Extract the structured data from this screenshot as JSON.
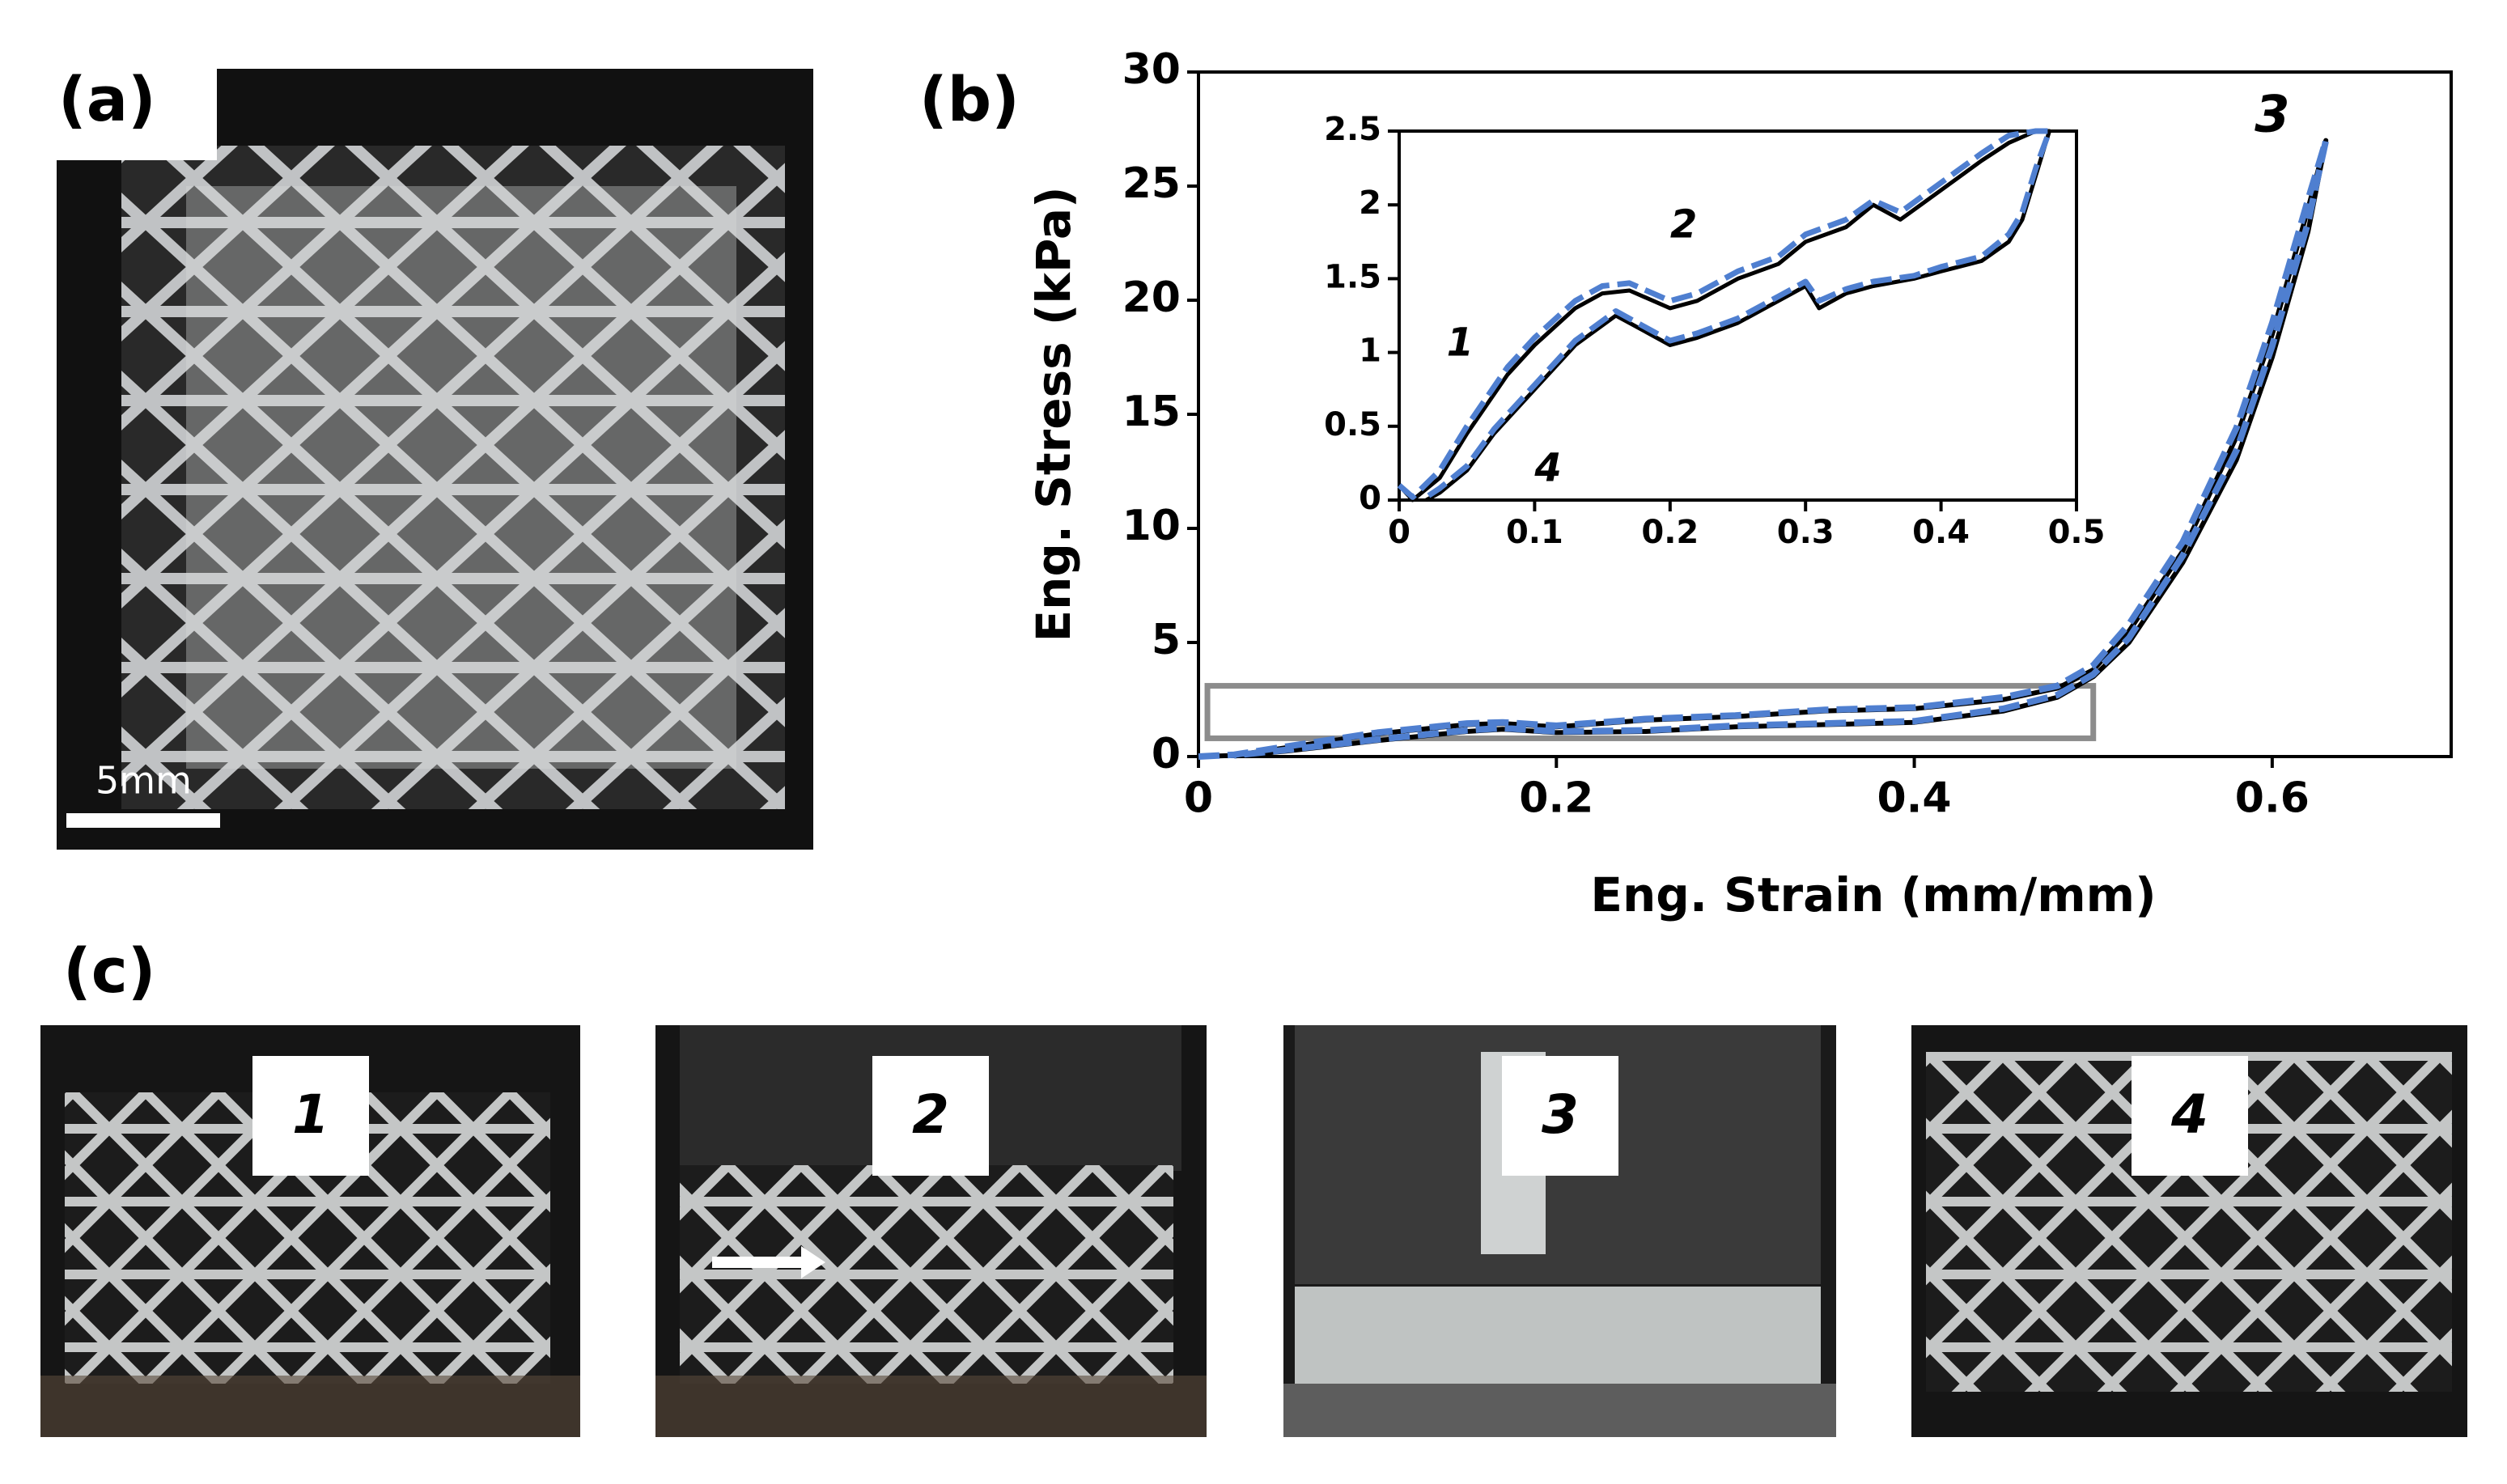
{
  "panel_labels": [
    "(a)",
    "(b)",
    "(c)"
  ],
  "scale_bar": "5mm",
  "photo_labels": [
    "1",
    "2",
    "3",
    "4"
  ],
  "chart_data": [
    {
      "type": "line",
      "xlabel": "Eng. Strain (mm/mm)",
      "ylabel": "Eng. Stress (kPa)",
      "xlim": [
        0,
        0.7
      ],
      "xticks": [
        0,
        0.2,
        0.4,
        0.6
      ],
      "ylim": [
        0,
        30
      ],
      "yticks": [
        0,
        5,
        10,
        15,
        20,
        25,
        30
      ],
      "highlight_box": {
        "xlim": [
          0.005,
          0.5
        ],
        "ylim": [
          0.8,
          3.1
        ],
        "color": "#8c8c8c"
      },
      "annotations": [
        {
          "text": "3",
          "x": 0.6,
          "y": 28
        }
      ],
      "series": [
        {
          "color": "#000000",
          "dashed": false,
          "x": [
            0,
            0.02,
            0.05,
            0.1,
            0.15,
            0.17,
            0.2,
            0.25,
            0.3,
            0.35,
            0.4,
            0.45,
            0.48,
            0.5,
            0.52,
            0.55,
            0.58,
            0.6,
            0.62,
            0.63,
            0.62,
            0.6,
            0.58,
            0.55,
            0.52,
            0.5,
            0.48,
            0.45,
            0.4,
            0.35,
            0.3,
            0.25,
            0.2,
            0.17,
            0.15,
            0.1,
            0.05,
            0.02
          ],
          "values": [
            0,
            0.05,
            0.4,
            1.0,
            1.4,
            1.45,
            1.3,
            1.6,
            1.75,
            2.0,
            2.1,
            2.5,
            3.0,
            3.8,
            5.5,
            9,
            14,
            18.5,
            24,
            27,
            23,
            17.5,
            13,
            8.5,
            5,
            3.5,
            2.6,
            2.0,
            1.5,
            1.4,
            1.3,
            1.1,
            1.05,
            1.2,
            1.1,
            0.7,
            0.25,
            0.02
          ]
        },
        {
          "color": "#4f7fd0",
          "dashed": true,
          "x": [
            0,
            0.02,
            0.05,
            0.1,
            0.15,
            0.17,
            0.2,
            0.25,
            0.3,
            0.35,
            0.4,
            0.45,
            0.48,
            0.5,
            0.52,
            0.55,
            0.58,
            0.6,
            0.62,
            0.63,
            0.62,
            0.6,
            0.58,
            0.55,
            0.52,
            0.5,
            0.48,
            0.45,
            0.4,
            0.35,
            0.3,
            0.25,
            0.2,
            0.17,
            0.15,
            0.1,
            0.05,
            0.02
          ],
          "values": [
            0,
            0.08,
            0.45,
            1.05,
            1.45,
            1.5,
            1.35,
            1.65,
            1.8,
            2.05,
            2.15,
            2.6,
            3.1,
            4.0,
            5.8,
            9.4,
            14.4,
            19,
            24.4,
            27,
            23.4,
            18,
            13.4,
            8.8,
            5.2,
            3.6,
            2.7,
            2.1,
            1.55,
            1.45,
            1.35,
            1.15,
            1.1,
            1.25,
            1.15,
            0.75,
            0.3,
            0.05
          ]
        }
      ]
    },
    {
      "type": "line",
      "xlim": [
        0,
        0.5
      ],
      "xticks": [
        0,
        0.1,
        0.2,
        0.3,
        0.4,
        0.5
      ],
      "ylim": [
        0,
        2.5
      ],
      "yticks": [
        0,
        0.5,
        1,
        1.5,
        2,
        2.5
      ],
      "annotations": [
        {
          "text": "1",
          "x": 0.045,
          "y": 1.05
        },
        {
          "text": "2",
          "x": 0.21,
          "y": 1.85
        },
        {
          "text": "4",
          "x": 0.11,
          "y": 0.2
        }
      ],
      "series": [
        {
          "color": "#000000",
          "dashed": false,
          "x": [
            0,
            0.01,
            0.03,
            0.05,
            0.08,
            0.1,
            0.13,
            0.15,
            0.17,
            0.2,
            0.22,
            0.25,
            0.28,
            0.3,
            0.33,
            0.35,
            0.37,
            0.4,
            0.43,
            0.45,
            0.47,
            0.48,
            0.47,
            0.46,
            0.45,
            0.43,
            0.4,
            0.38,
            0.35,
            0.33,
            0.31,
            0.3,
            0.28,
            0.25,
            0.22,
            0.2,
            0.18,
            0.16,
            0.13,
            0.1,
            0.07,
            0.05,
            0.03,
            0.02
          ],
          "values": [
            0.1,
            0,
            0.15,
            0.45,
            0.85,
            1.05,
            1.3,
            1.4,
            1.42,
            1.3,
            1.35,
            1.5,
            1.6,
            1.75,
            1.85,
            2.0,
            1.9,
            2.1,
            2.3,
            2.42,
            2.5,
            2.5,
            2.2,
            1.9,
            1.75,
            1.62,
            1.55,
            1.5,
            1.45,
            1.4,
            1.3,
            1.45,
            1.35,
            1.2,
            1.1,
            1.05,
            1.15,
            1.25,
            1.05,
            0.75,
            0.45,
            0.2,
            0.05,
            0
          ]
        },
        {
          "color": "#4f7fd0",
          "dashed": true,
          "x": [
            0,
            0.01,
            0.03,
            0.05,
            0.08,
            0.1,
            0.13,
            0.15,
            0.17,
            0.2,
            0.22,
            0.25,
            0.28,
            0.3,
            0.33,
            0.35,
            0.37,
            0.4,
            0.43,
            0.45,
            0.47,
            0.48,
            0.47,
            0.46,
            0.45,
            0.43,
            0.4,
            0.38,
            0.35,
            0.33,
            0.31,
            0.3,
            0.28,
            0.25,
            0.22,
            0.2,
            0.18,
            0.16,
            0.13,
            0.1,
            0.07,
            0.05,
            0.03,
            0.02
          ],
          "values": [
            0.1,
            0.02,
            0.2,
            0.5,
            0.9,
            1.1,
            1.35,
            1.45,
            1.47,
            1.35,
            1.4,
            1.55,
            1.65,
            1.8,
            1.9,
            2.03,
            1.95,
            2.15,
            2.35,
            2.47,
            2.5,
            2.5,
            2.25,
            1.95,
            1.8,
            1.65,
            1.58,
            1.52,
            1.48,
            1.43,
            1.35,
            1.48,
            1.38,
            1.23,
            1.13,
            1.08,
            1.18,
            1.28,
            1.08,
            0.78,
            0.48,
            0.23,
            0.08,
            0.02
          ]
        }
      ]
    }
  ]
}
